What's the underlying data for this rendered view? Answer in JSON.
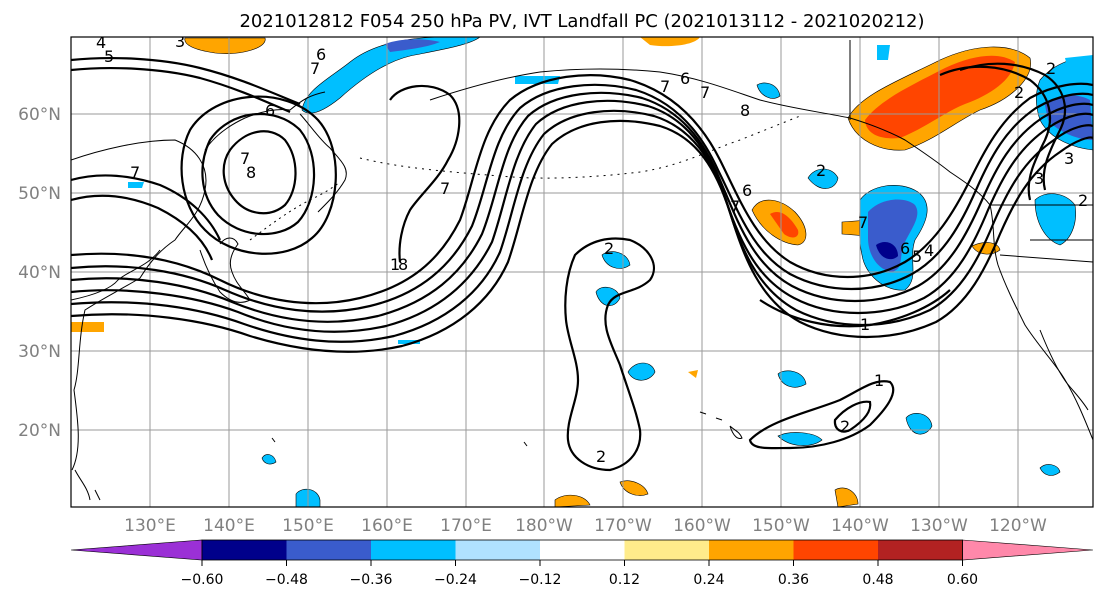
{
  "title": "2021012812 F054 250 hPa PV, IVT Landfall PC (2021013112 - 2021020212)",
  "lat_labels": [
    "60°N",
    "50°N",
    "40°N",
    "30°N",
    "20°N"
  ],
  "lon_labels": [
    "130°E",
    "140°E",
    "150°E",
    "160°E",
    "170°E",
    "180°W",
    "170°W",
    "160°W",
    "150°W",
    "140°W",
    "130°W",
    "120°W"
  ],
  "colorbar": {
    "colors": [
      "#9b30d6",
      "#00008b",
      "#3a5ccc",
      "#00bfff",
      "#b0e2ff",
      "#ffffff",
      "#ffec8b",
      "#ffa500",
      "#ff4500",
      "#b22222",
      "#ff88aa"
    ],
    "tick_labels": [
      "−0.60",
      "−0.48",
      "−0.36",
      "−0.24",
      "−0.12",
      "0.12",
      "0.24",
      "0.36",
      "0.48",
      "0.60"
    ]
  },
  "contour_labels": [
    "4",
    "5",
    "3",
    "6",
    "7",
    "6",
    "7",
    "7",
    "8",
    "7",
    "1",
    "8",
    "2",
    "8",
    "7",
    "7",
    "6",
    "7",
    "6",
    "5",
    "4",
    "2",
    "3",
    "3",
    "2",
    "1",
    "1",
    "2",
    "2",
    "2",
    "2",
    "6",
    "7"
  ]
}
